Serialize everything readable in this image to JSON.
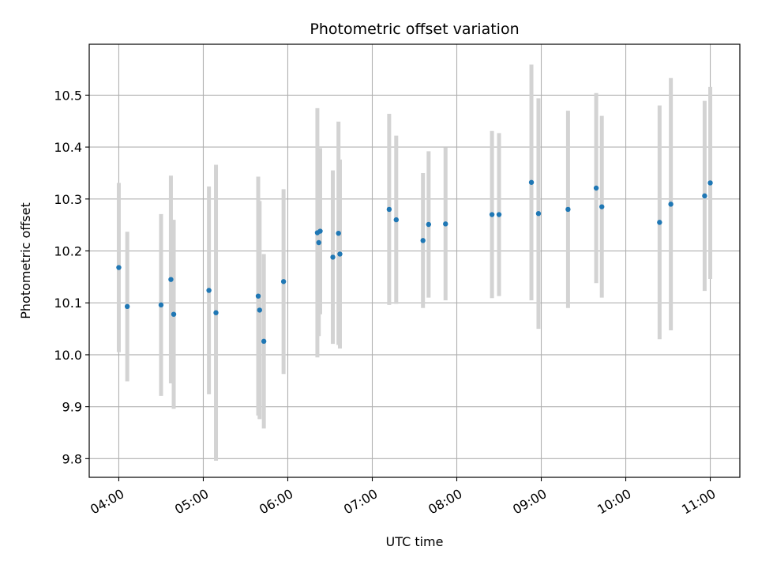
{
  "chart_data": {
    "type": "scatter",
    "title": "Photometric offset variation",
    "xlabel": "UTC time",
    "ylabel": "Photometric offset",
    "xlim": [
      "03:39",
      "11:21"
    ],
    "ylim": [
      9.764,
      10.598
    ],
    "grid": true,
    "x_ticks": [
      "04:00",
      "05:00",
      "06:00",
      "07:00",
      "08:00",
      "09:00",
      "10:00",
      "11:00"
    ],
    "y_ticks": [
      9.8,
      9.9,
      10.0,
      10.1,
      10.2,
      10.3,
      10.4,
      10.5
    ],
    "y_tick_labels": [
      "9.8",
      "9.9",
      "10.0",
      "10.1",
      "10.2",
      "10.3",
      "10.4",
      "10.5"
    ],
    "colors": {
      "points": "#1f77b4",
      "errorbars": "#d3d3d3",
      "grid": "#b0b0b0"
    },
    "series": [
      {
        "error_bars": true,
        "points": [
          {
            "x": "04:00",
            "y": 10.168,
            "err": 0.163
          },
          {
            "x": "04:06",
            "y": 10.093,
            "err": 0.144
          },
          {
            "x": "04:30",
            "y": 10.096,
            "err": 0.175
          },
          {
            "x": "04:37",
            "y": 10.145,
            "err": 0.2
          },
          {
            "x": "04:39",
            "y": 10.078,
            "err": 0.182
          },
          {
            "x": "05:04",
            "y": 10.124,
            "err": 0.2
          },
          {
            "x": "05:09",
            "y": 10.081,
            "err": 0.285
          },
          {
            "x": "05:39",
            "y": 10.113,
            "err": 0.23
          },
          {
            "x": "05:40",
            "y": 10.086,
            "err": 0.21
          },
          {
            "x": "05:43",
            "y": 10.026,
            "err": 0.168
          },
          {
            "x": "05:57",
            "y": 10.141,
            "err": 0.178
          },
          {
            "x": "06:21",
            "y": 10.235,
            "err": 0.24
          },
          {
            "x": "06:22",
            "y": 10.216,
            "err": 0.18
          },
          {
            "x": "06:23",
            "y": 10.238,
            "err": 0.16
          },
          {
            "x": "06:32",
            "y": 10.188,
            "err": 0.167
          },
          {
            "x": "06:36",
            "y": 10.234,
            "err": 0.215
          },
          {
            "x": "06:37",
            "y": 10.194,
            "err": 0.182
          },
          {
            "x": "07:12",
            "y": 10.28,
            "err": 0.184
          },
          {
            "x": "07:17",
            "y": 10.26,
            "err": 0.162
          },
          {
            "x": "07:36",
            "y": 10.22,
            "err": 0.13
          },
          {
            "x": "07:40",
            "y": 10.251,
            "err": 0.141
          },
          {
            "x": "07:52",
            "y": 10.252,
            "err": 0.147
          },
          {
            "x": "08:25",
            "y": 10.27,
            "err": 0.161
          },
          {
            "x": "08:30",
            "y": 10.27,
            "err": 0.157
          },
          {
            "x": "08:53",
            "y": 10.332,
            "err": 0.227
          },
          {
            "x": "08:58",
            "y": 10.272,
            "err": 0.222
          },
          {
            "x": "09:19",
            "y": 10.28,
            "err": 0.19
          },
          {
            "x": "09:39",
            "y": 10.321,
            "err": 0.183
          },
          {
            "x": "09:43",
            "y": 10.285,
            "err": 0.175
          },
          {
            "x": "10:24",
            "y": 10.255,
            "err": 0.225
          },
          {
            "x": "10:32",
            "y": 10.29,
            "err": 0.243
          },
          {
            "x": "10:56",
            "y": 10.306,
            "err": 0.183
          },
          {
            "x": "11:00",
            "y": 10.331,
            "err": 0.185
          }
        ]
      }
    ]
  }
}
